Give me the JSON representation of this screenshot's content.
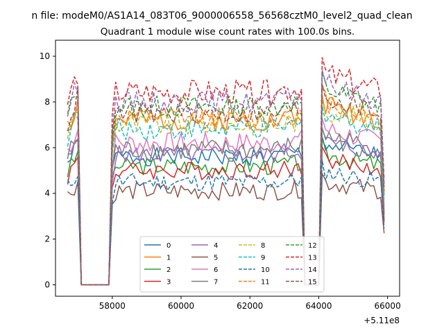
{
  "chart_data": {
    "type": "line",
    "suptitle": "n file: modeM0/AS1A14_083T06_9000006558_56568cztM0_level2_quad_clean",
    "title": "Quadrant 1 module wise count rates with 100.0s bins.",
    "xlabel": "",
    "ylabel": "",
    "x_offset_label": "+5.11e8",
    "xlim": [
      56350,
      66350
    ],
    "ylim": [
      -0.5,
      10.7
    ],
    "x_ticks": [
      58000,
      60000,
      62000,
      64000,
      66000
    ],
    "x_tick_labels": [
      "58000",
      "60000",
      "62000",
      "64000",
      "66000"
    ],
    "y_ticks": [
      0,
      2,
      4,
      6,
      8,
      10
    ],
    "y_tick_labels": [
      "0",
      "2",
      "4",
      "6",
      "8",
      "10"
    ],
    "segments": [
      {
        "start": 56700,
        "end": 57000
      },
      {
        "start": 57100,
        "end": 57900
      },
      {
        "start": 58000,
        "end": 62800
      },
      {
        "start": 63000,
        "end": 63500
      },
      {
        "start": 63600,
        "end": 64000
      },
      {
        "start": 64100,
        "end": 65900
      }
    ],
    "legend": {
      "location": "lower-center",
      "columns": 4
    },
    "series": [
      {
        "name": "0",
        "color": "#1f77b4",
        "dash": "solid",
        "level": 5.6,
        "amp": 0.25,
        "seed": 1
      },
      {
        "name": "1",
        "color": "#ff7f0e",
        "dash": "solid",
        "level": 7.2,
        "amp": 0.3,
        "seed": 2
      },
      {
        "name": "2",
        "color": "#2ca02c",
        "dash": "solid",
        "level": 5.2,
        "amp": 0.25,
        "seed": 3
      },
      {
        "name": "3",
        "color": "#d62728",
        "dash": "solid",
        "level": 5.0,
        "amp": 0.25,
        "seed": 4
      },
      {
        "name": "4",
        "color": "#9467bd",
        "dash": "solid",
        "level": 5.7,
        "amp": 0.25,
        "seed": 5
      },
      {
        "name": "5",
        "color": "#8c564b",
        "dash": "solid",
        "level": 4.1,
        "amp": 0.25,
        "seed": 6
      },
      {
        "name": "6",
        "color": "#e377c2",
        "dash": "solid",
        "level": 6.2,
        "amp": 0.3,
        "seed": 7
      },
      {
        "name": "7",
        "color": "#7f7f7f",
        "dash": "solid",
        "level": 5.9,
        "amp": 0.3,
        "seed": 8
      },
      {
        "name": "8",
        "color": "#bcbd22",
        "dash": "dashed",
        "level": 7.0,
        "amp": 0.3,
        "seed": 9
      },
      {
        "name": "9",
        "color": "#17becf",
        "dash": "dashed",
        "level": 6.8,
        "amp": 0.3,
        "seed": 10
      },
      {
        "name": "10",
        "color": "#1f77b4",
        "dash": "dashed",
        "level": 4.5,
        "amp": 0.25,
        "seed": 11
      },
      {
        "name": "11",
        "color": "#ff7f0e",
        "dash": "dashed",
        "level": 7.3,
        "amp": 0.3,
        "seed": 12
      },
      {
        "name": "12",
        "color": "#2ca02c",
        "dash": "dashed",
        "level": 7.8,
        "amp": 0.3,
        "seed": 13
      },
      {
        "name": "13",
        "color": "#d62728",
        "dash": "dashed",
        "level": 8.4,
        "amp": 0.35,
        "seed": 14
      },
      {
        "name": "14",
        "color": "#9467bd",
        "dash": "dashed",
        "level": 8.0,
        "amp": 0.3,
        "seed": 15
      },
      {
        "name": "15",
        "color": "#8c564b",
        "dash": "dashed",
        "level": 7.5,
        "amp": 0.3,
        "seed": 16
      }
    ]
  }
}
